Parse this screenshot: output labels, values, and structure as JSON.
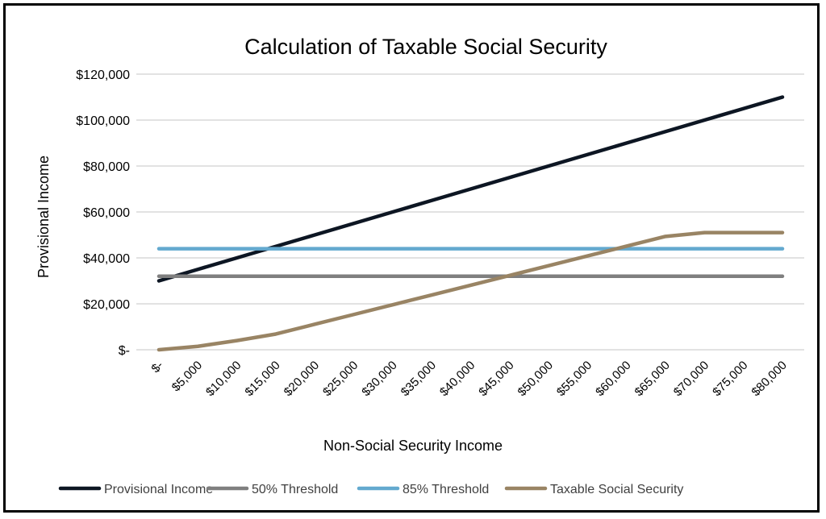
{
  "chart_data": {
    "type": "line",
    "title": "Calculation of Taxable Social Security",
    "xlabel": "Non-Social Security Income",
    "ylabel": "Provisional Income",
    "x": [
      0,
      5000,
      10000,
      15000,
      20000,
      25000,
      30000,
      35000,
      40000,
      45000,
      50000,
      55000,
      60000,
      65000,
      70000,
      75000,
      80000
    ],
    "x_tick_labels": [
      "$-",
      "$5,000",
      "$10,000",
      "$15,000",
      "$20,000",
      "$25,000",
      "$30,000",
      "$35,000",
      "$40,000",
      "$45,000",
      "$50,000",
      "$55,000",
      "$60,000",
      "$65,000",
      "$70,000",
      "$75,000",
      "$80,000"
    ],
    "y_ticks": [
      0,
      20000,
      40000,
      60000,
      80000,
      100000,
      120000
    ],
    "y_tick_labels": [
      "$-",
      "$20,000",
      "$40,000",
      "$60,000",
      "$80,000",
      "$100,000",
      "$120,000"
    ],
    "ylim": [
      0,
      120000
    ],
    "grid": true,
    "legend_position": "bottom",
    "series": [
      {
        "name": "Provisional Income",
        "color": "#0d1623",
        "values": [
          30000,
          35000,
          40000,
          45000,
          50000,
          55000,
          60000,
          65000,
          70000,
          75000,
          80000,
          85000,
          90000,
          95000,
          100000,
          105000,
          110000
        ]
      },
      {
        "name": "50% Threshold",
        "color": "#7f7f7f",
        "values": [
          32000,
          32000,
          32000,
          32000,
          32000,
          32000,
          32000,
          32000,
          32000,
          32000,
          32000,
          32000,
          32000,
          32000,
          32000,
          32000,
          32000
        ]
      },
      {
        "name": "85% Threshold",
        "color": "#63a9cf",
        "values": [
          44000,
          44000,
          44000,
          44000,
          44000,
          44000,
          44000,
          44000,
          44000,
          44000,
          44000,
          44000,
          44000,
          44000,
          44000,
          44000,
          44000
        ]
      },
      {
        "name": "Taxable Social Security",
        "color": "#998464",
        "values": [
          0,
          1500,
          4000,
          6850,
          11100,
          15350,
          19600,
          23850,
          28100,
          32350,
          36600,
          40850,
          45100,
          49350,
          51000,
          51000,
          51000
        ]
      }
    ]
  }
}
